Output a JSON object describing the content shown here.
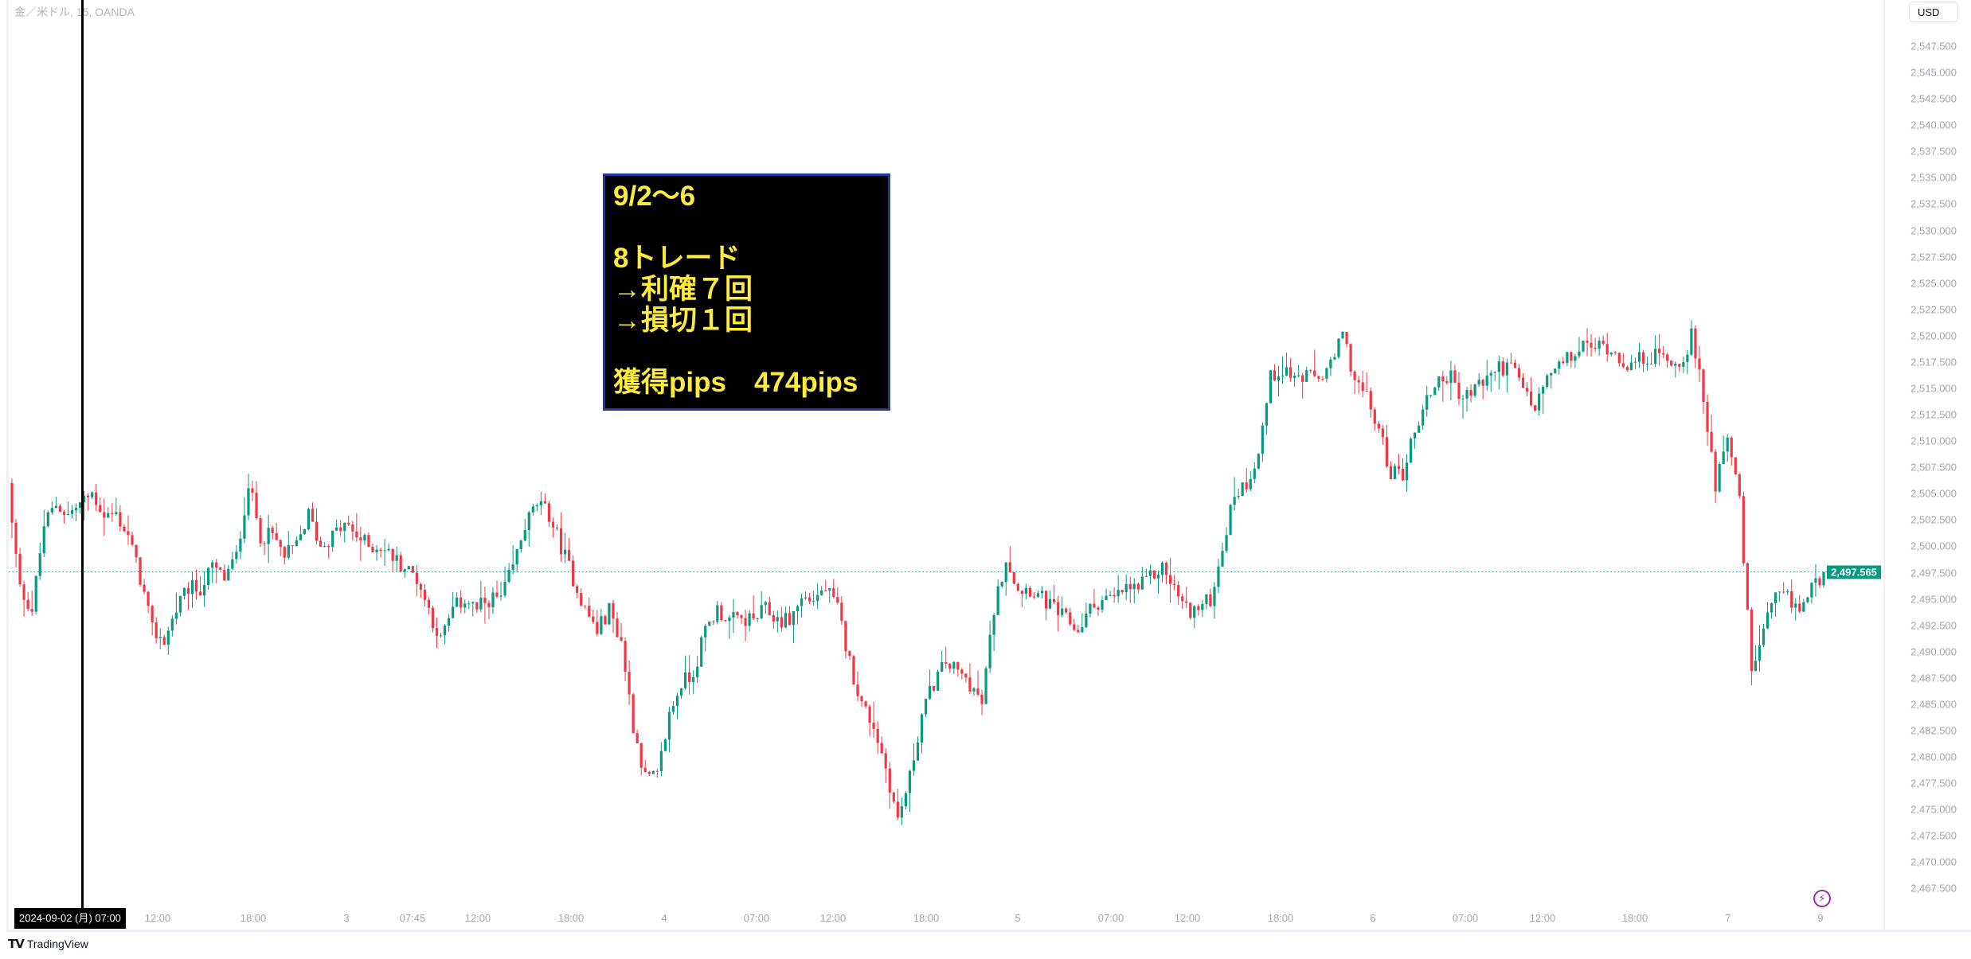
{
  "header": {
    "symbol_title": "金／米ドル, 15, OANDA",
    "currency_button": "USD"
  },
  "crosshair": {
    "date_label": "2024-09-02 (月)   07:00"
  },
  "annotation": {
    "lines": [
      "9/2～6",
      "",
      "8トレード",
      "→利確７回",
      "→損切１回",
      "",
      "獲得pips　474pips"
    ]
  },
  "footer": {
    "brand": "TradingView",
    "logo_text": "TV"
  },
  "icons": {
    "alert": "lightning-bolt-icon"
  },
  "colors": {
    "up": "#089981",
    "down": "#f23645",
    "annotation_text": "#ffeb3b",
    "annotation_border": "#1a3aa0",
    "alert_icon": "#9c27b0"
  },
  "chart_data": {
    "type": "candlestick",
    "symbol": "金／米ドル",
    "interval": "15",
    "source": "OANDA",
    "price_ticks": [
      "2,547.500",
      "2,545.000",
      "2,542.500",
      "2,540.000",
      "2,537.500",
      "2,535.000",
      "2,532.500",
      "2,530.000",
      "2,527.500",
      "2,525.000",
      "2,522.500",
      "2,520.000",
      "2,517.500",
      "2,515.000",
      "2,512.500",
      "2,510.000",
      "2,507.500",
      "2,505.000",
      "2,502.500",
      "2,500.000",
      "2,497.500",
      "2,495.000",
      "2,492.500",
      "2,490.000",
      "2,487.500",
      "2,485.000",
      "2,482.500",
      "2,480.000",
      "2,477.500",
      "2,475.000",
      "2,472.500",
      "2,470.000",
      "2,467.500"
    ],
    "ylim": [
      2466,
      2550
    ],
    "time_ticks": [
      "12:00",
      "18:00",
      "3",
      "07:45",
      "12:00",
      "18:00",
      "4",
      "07:00",
      "12:00",
      "18:00",
      "5",
      "07:00",
      "12:00",
      "18:00",
      "6",
      "07:00",
      "12:00",
      "18:00",
      "7",
      "9"
    ],
    "current_price": 2497.565,
    "current_price_label": "2,497.565",
    "approx_close_path": [
      2505,
      2496,
      2494,
      2502,
      2504,
      2503,
      2504,
      2505,
      2503,
      2503,
      2501,
      2497,
      2492,
      2491,
      2494,
      2496,
      2496,
      2498,
      2497,
      2499,
      2506,
      2501,
      2501,
      2499,
      2500,
      2503,
      2500,
      2501,
      2502,
      2501,
      2500,
      2500,
      2499,
      2498,
      2497,
      2494,
      2491,
      2494,
      2495,
      2494,
      2495,
      2495,
      2498,
      2502,
      2504,
      2503,
      2500,
      2497,
      2494,
      2492,
      2494,
      2491,
      2483,
      2478,
      2478,
      2484,
      2487,
      2488,
      2492,
      2494,
      2493,
      2493,
      2493,
      2494,
      2493,
      2493,
      2495,
      2495,
      2496,
      2494,
      2489,
      2485,
      2483,
      2479,
      2474,
      2478,
      2484,
      2487,
      2489,
      2488,
      2487,
      2485,
      2494,
      2499,
      2496,
      2496,
      2495,
      2494,
      2493,
      2492,
      2494,
      2495,
      2495,
      2496,
      2496,
      2497,
      2498,
      2496,
      2494,
      2494,
      2495,
      2500,
      2505,
      2506,
      2509,
      2516,
      2517,
      2516,
      2516,
      2516,
      2517,
      2520,
      2516,
      2514,
      2511,
      2507,
      2507,
      2511,
      2514,
      2516,
      2516,
      2514,
      2515,
      2516,
      2517,
      2517,
      2515,
      2513,
      2516,
      2517,
      2518,
      2519,
      2519,
      2519,
      2518,
      2517,
      2518,
      2518,
      2518,
      2517,
      2520,
      2514,
      2506,
      2511,
      2504,
      2488,
      2492,
      2495,
      2495,
      2494,
      2496,
      2497.565
    ]
  }
}
